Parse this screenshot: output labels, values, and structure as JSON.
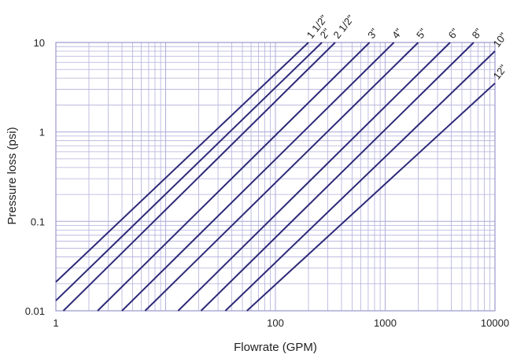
{
  "chart_data": {
    "type": "line",
    "title": "",
    "xlabel": "Flowrate (GPM)",
    "ylabel": "Pressure loss (psi)",
    "x_scale": "log",
    "y_scale": "log",
    "xlim": [
      1,
      10000
    ],
    "ylim": [
      0.01,
      10
    ],
    "grid": true,
    "legend": "line-end labels",
    "x_ticks": [
      {
        "value": 1,
        "label": "1"
      },
      {
        "value": 100,
        "label": "100"
      },
      {
        "value": 1000,
        "label": "1000"
      },
      {
        "value": 10000,
        "label": "10000"
      }
    ],
    "y_ticks": [
      {
        "value": 10,
        "label": "10"
      },
      {
        "value": 1,
        "label": "1"
      },
      {
        "value": 0.1,
        "label": "0.1"
      },
      {
        "value": 0.01,
        "label": "0.01"
      }
    ],
    "colors": {
      "line": "#2e2a78",
      "grid": "#b3b0dc",
      "axis": "#9a97cc"
    },
    "series": [
      {
        "name": "1 1/2\"",
        "points": [
          [
            1,
            0.021
          ],
          [
            200,
            10
          ]
        ]
      },
      {
        "name": "2\"",
        "points": [
          [
            1,
            0.013
          ],
          [
            265,
            10
          ]
        ]
      },
      {
        "name": "2 1/2\"",
        "points": [
          [
            1.17,
            0.01
          ],
          [
            350,
            10
          ]
        ]
      },
      {
        "name": "3\"",
        "points": [
          [
            2.4,
            0.01
          ],
          [
            720,
            10
          ]
        ]
      },
      {
        "name": "4\"",
        "points": [
          [
            4,
            0.01
          ],
          [
            1200,
            10
          ]
        ]
      },
      {
        "name": "5\"",
        "points": [
          [
            6.5,
            0.01
          ],
          [
            2000,
            10
          ]
        ]
      },
      {
        "name": "6\"",
        "points": [
          [
            13,
            0.01
          ],
          [
            3900,
            10
          ]
        ]
      },
      {
        "name": "8\"",
        "points": [
          [
            21,
            0.01
          ],
          [
            6400,
            10
          ]
        ]
      },
      {
        "name": "10\"",
        "points": [
          [
            35,
            0.01
          ],
          [
            10000,
            8
          ]
        ]
      },
      {
        "name": "12\"",
        "points": [
          [
            55,
            0.01
          ],
          [
            10000,
            3.5
          ]
        ]
      }
    ]
  }
}
